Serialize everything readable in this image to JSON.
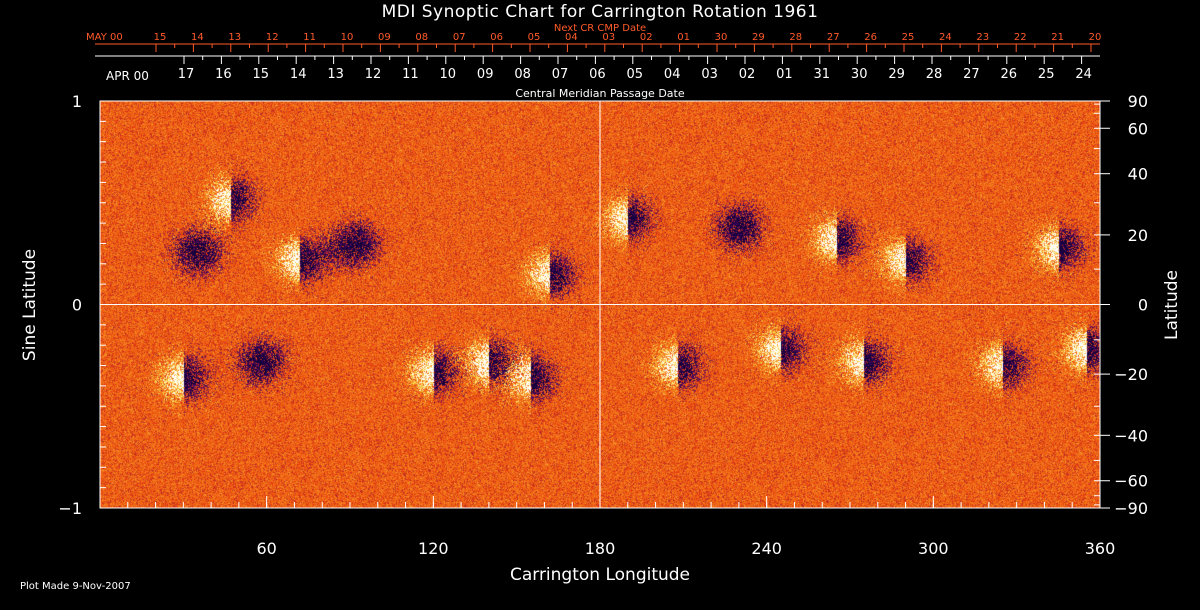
{
  "chart_data": {
    "type": "heatmap",
    "title": "MDI Synoptic Chart for Carrington Rotation 1961",
    "xlabel": "Carrington Longitude",
    "ylabel_left": "Sine Latitude",
    "ylabel_right": "Latitude",
    "x_range": [
      0,
      360
    ],
    "y_range": [
      -1,
      1
    ],
    "x_ticks": [
      60,
      120,
      180,
      240,
      300,
      360
    ],
    "y_ticks_left": [
      {
        "v": 1,
        "label": "1"
      },
      {
        "v": 0,
        "label": "0"
      },
      {
        "v": -1,
        "label": "−1"
      }
    ],
    "y_ticks_right": [
      90,
      60,
      40,
      20,
      0,
      -20,
      -40,
      -60,
      -90
    ],
    "top_axis": {
      "title": "Next CR CMP Date",
      "month_label": "MAY 00",
      "labels": [
        "15",
        "14",
        "13",
        "12",
        "11",
        "10",
        "09",
        "08",
        "07",
        "06",
        "05",
        "04",
        "03",
        "02",
        "01",
        "30",
        "29",
        "28",
        "27",
        "26",
        "25",
        "24",
        "23",
        "22",
        "21",
        "20"
      ],
      "first_fraction": 0.056,
      "step_fraction": 0.0374,
      "color": "#ff5a2a"
    },
    "bottom_axis": {
      "title": "Central Meridian Passage Date",
      "month_label": "APR 00",
      "labels": [
        "17",
        "16",
        "15",
        "14",
        "13",
        "12",
        "11",
        "10",
        "09",
        "08",
        "07",
        "06",
        "05",
        "04",
        "03",
        "02",
        "01",
        "31",
        "30",
        "29",
        "28",
        "27",
        "26",
        "25",
        "24"
      ],
      "first_fraction": 0.084,
      "step_fraction": 0.0374
    },
    "grid": "crosshair",
    "colormap": "heat (black–purple negative, white positive, orange background)",
    "regions": [
      {
        "lon": 47,
        "lat": 0.52,
        "pol": "mixed"
      },
      {
        "lon": 35,
        "lat": 0.26,
        "pol": "neg"
      },
      {
        "lon": 72,
        "lat": 0.22,
        "pol": "mixed"
      },
      {
        "lon": 92,
        "lat": 0.3,
        "pol": "neg"
      },
      {
        "lon": 162,
        "lat": 0.15,
        "pol": "mixed"
      },
      {
        "lon": 190,
        "lat": 0.42,
        "pol": "mixed"
      },
      {
        "lon": 230,
        "lat": 0.38,
        "pol": "neg"
      },
      {
        "lon": 265,
        "lat": 0.32,
        "pol": "mixed"
      },
      {
        "lon": 290,
        "lat": 0.22,
        "pol": "mixed"
      },
      {
        "lon": 345,
        "lat": 0.28,
        "pol": "mixed"
      },
      {
        "lon": 30,
        "lat": -0.36,
        "pol": "mixed"
      },
      {
        "lon": 58,
        "lat": -0.28,
        "pol": "neg"
      },
      {
        "lon": 120,
        "lat": -0.33,
        "pol": "mixed"
      },
      {
        "lon": 140,
        "lat": -0.28,
        "pol": "mixed"
      },
      {
        "lon": 155,
        "lat": -0.36,
        "pol": "mixed"
      },
      {
        "lon": 208,
        "lat": -0.3,
        "pol": "mixed"
      },
      {
        "lon": 245,
        "lat": -0.22,
        "pol": "mixed"
      },
      {
        "lon": 275,
        "lat": -0.28,
        "pol": "mixed"
      },
      {
        "lon": 325,
        "lat": -0.3,
        "pol": "mixed"
      },
      {
        "lon": 355,
        "lat": -0.22,
        "pol": "mixed"
      }
    ]
  },
  "footer": {
    "plot_made": "Plot Made  9-Nov-2007"
  },
  "colors": {
    "background": "#000000",
    "map_base": "#e8561a",
    "axis": "#ffffff",
    "top_axis": "#ff5a2a"
  }
}
